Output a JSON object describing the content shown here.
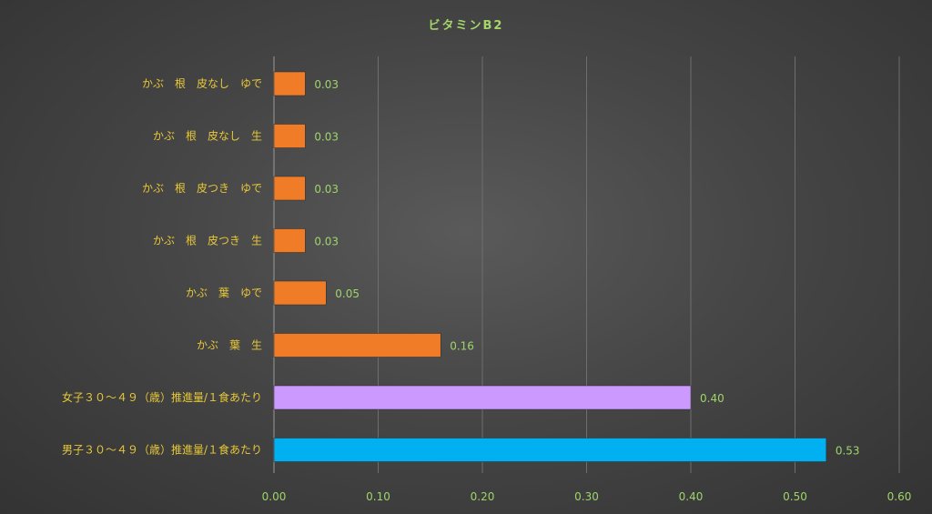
{
  "chart_data": {
    "type": "bar",
    "orientation": "horizontal",
    "title": "ビタミンB2",
    "xlim": [
      0,
      0.6
    ],
    "x_ticks": [
      "0.00",
      "0.10",
      "0.20",
      "0.30",
      "0.40",
      "0.50",
      "0.60"
    ],
    "grid": true,
    "categories": [
      "かぶ　根　皮なし　ゆで",
      "かぶ　根　皮なし　生",
      "かぶ　根　皮つき　ゆで",
      "かぶ　根　皮つき　生",
      "かぶ　葉　ゆで",
      "かぶ　葉　生",
      "女子３０～４９（歳）推進量/１食あたり",
      "男子３０～４９（歳）推進量/１食あたり"
    ],
    "values": [
      0.03,
      0.03,
      0.03,
      0.03,
      0.05,
      0.16,
      0.4,
      0.53
    ],
    "value_labels": [
      "0.03",
      "0.03",
      "0.03",
      "0.03",
      "0.05",
      "0.16",
      "0.40",
      "0.53"
    ],
    "bar_colors": [
      "#f07c28",
      "#f07c28",
      "#f07c28",
      "#f07c28",
      "#f07c28",
      "#f07c28",
      "#cc99ff",
      "#00b0f0"
    ]
  }
}
